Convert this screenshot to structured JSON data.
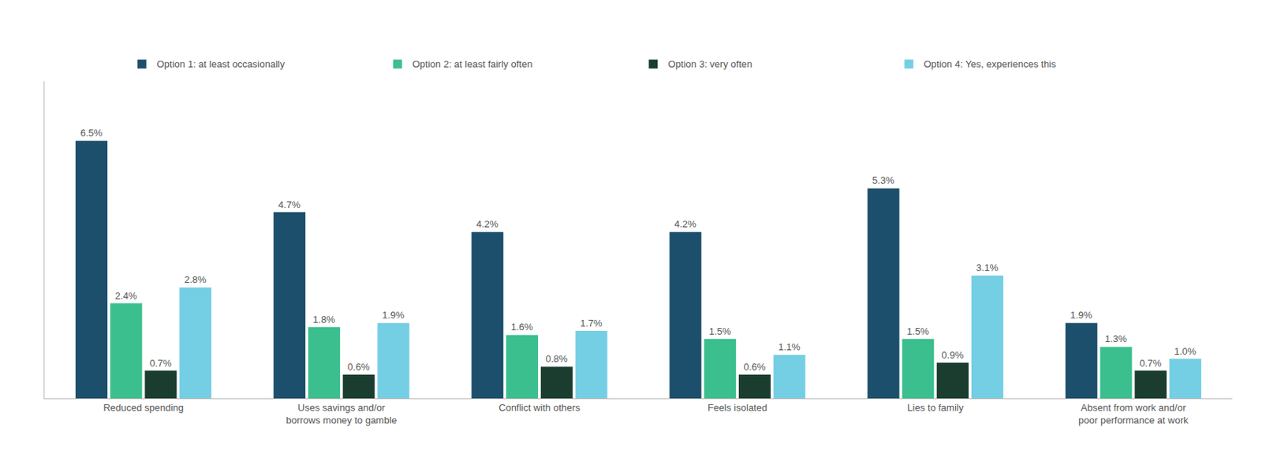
{
  "chart_data": {
    "type": "bar",
    "categories": [
      "Reduced spending",
      "Uses savings and/or\nborrows money to gamble",
      "Conflict with others",
      "Feels isolated",
      "Lies to family",
      "Absent from work and/or\npoor performance at work"
    ],
    "series": [
      {
        "name": "Option 1: at least occasionally",
        "color": "#1c4f6b",
        "values": [
          6.5,
          4.7,
          4.2,
          4.2,
          5.3,
          1.9
        ],
        "value_labels": [
          "6.5%",
          "4.7%",
          "4.2%",
          "4.2%",
          "5.3%",
          "1.9%"
        ]
      },
      {
        "name": "Option 2: at least fairly often",
        "color": "#3bbf8e",
        "values": [
          2.4,
          1.8,
          1.6,
          1.5,
          1.5,
          1.3
        ],
        "value_labels": [
          "2.4%",
          "1.8%",
          "1.6%",
          "1.5%",
          "1.5%",
          "1.3%"
        ]
      },
      {
        "name": "Option 3: very often",
        "color": "#1a3d2f",
        "values": [
          0.7,
          0.6,
          0.8,
          0.6,
          0.9,
          0.7
        ],
        "value_labels": [
          "0.7%",
          "0.6%",
          "0.8%",
          "0.6%",
          "0.9%",
          "0.7%"
        ]
      },
      {
        "name": "Option 4: Yes, experiences this",
        "color": "#74cee4",
        "values": [
          2.8,
          1.9,
          1.7,
          1.1,
          3.1,
          1.0
        ],
        "value_labels": [
          "2.8%",
          "1.9%",
          "1.7%",
          "1.1%",
          "3.1%",
          "1.0%"
        ]
      }
    ],
    "ylim": [
      0,
      8.0
    ],
    "yticks": [],
    "grid": false,
    "legend": "top",
    "data_labels": true,
    "tick_labels": "x"
  }
}
